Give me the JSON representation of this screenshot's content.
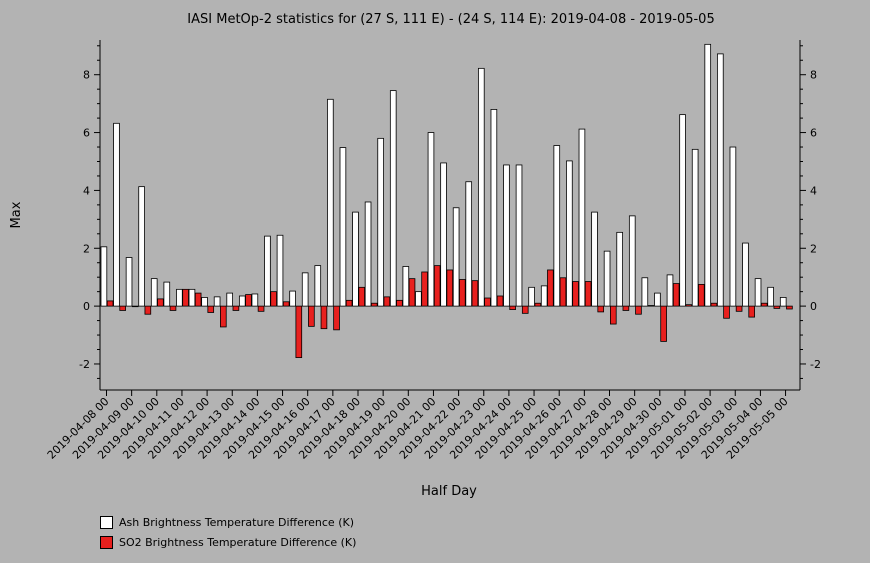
{
  "chart_data": {
    "type": "bar",
    "title": "IASI MetOp-2 statistics for (27 S, 111 E) - (24 S, 114 E): 2019-04-08 - 2019-05-05",
    "xlabel": "Half Day",
    "ylabel": "Max",
    "ylim": [
      -2.9,
      9.2
    ],
    "yticks": [
      -2,
      0,
      2,
      4,
      6,
      8
    ],
    "grid": false,
    "legend_position": "bottom-left",
    "xtick_labels": [
      "2019-04-08 00",
      "2019-04-09 00",
      "2019-04-10 00",
      "2019-04-11 00",
      "2019-04-12 00",
      "2019-04-13 00",
      "2019-04-14 00",
      "2019-04-15 00",
      "2019-04-16 00",
      "2019-04-17 00",
      "2019-04-18 00",
      "2019-04-19 00",
      "2019-04-20 00",
      "2019-04-21 00",
      "2019-04-22 00",
      "2019-04-23 00",
      "2019-04-24 00",
      "2019-04-25 00",
      "2019-04-26 00",
      "2019-04-27 00",
      "2019-04-28 00",
      "2019-04-29 00",
      "2019-04-30 00",
      "2019-05-01 00",
      "2019-05-02 00",
      "2019-05-03 00",
      "2019-05-04 00",
      "2019-05-05 00"
    ],
    "series": [
      {
        "name": "Ash Brightness Temperature Difference (K)",
        "color": "#ffffff",
        "values": [
          2.05,
          6.32,
          1.68,
          4.13,
          0.95,
          0.83,
          0.58,
          0.58,
          0.3,
          0.32,
          0.45,
          0.35,
          0.42,
          2.42,
          2.45,
          0.52,
          1.15,
          1.4,
          7.15,
          5.48,
          3.25,
          3.6,
          5.8,
          7.45,
          1.37,
          0.5,
          6.0,
          4.95,
          3.4,
          4.3,
          8.22,
          6.8,
          4.88,
          4.88,
          0.65,
          0.7,
          5.55,
          5.02,
          6.12,
          3.25,
          1.9,
          2.55,
          3.12,
          0.98,
          0.45,
          1.08,
          6.62,
          5.42,
          9.05,
          8.72,
          5.5,
          2.18,
          0.95,
          0.65,
          0.3
        ]
      },
      {
        "name": "SO2 Brightness Temperature Difference (K)",
        "color": "#e8201e",
        "values": [
          0.18,
          -0.15,
          -0.02,
          -0.28,
          0.25,
          -0.15,
          0.58,
          0.45,
          -0.22,
          -0.72,
          -0.15,
          0.4,
          -0.18,
          0.5,
          0.15,
          -1.78,
          -0.7,
          -0.78,
          -0.82,
          0.2,
          0.65,
          0.1,
          0.32,
          0.2,
          0.95,
          1.18,
          1.4,
          1.25,
          0.92,
          0.88,
          0.28,
          0.35,
          -0.12,
          -0.25,
          0.1,
          1.25,
          0.98,
          0.85,
          0.85,
          -0.2,
          -0.62,
          -0.15,
          -0.28,
          0.02,
          -1.22,
          0.78,
          0.05,
          0.75,
          0.1,
          -0.42,
          -0.18,
          -0.38,
          0.1,
          -0.08,
          -0.1
        ]
      }
    ]
  }
}
